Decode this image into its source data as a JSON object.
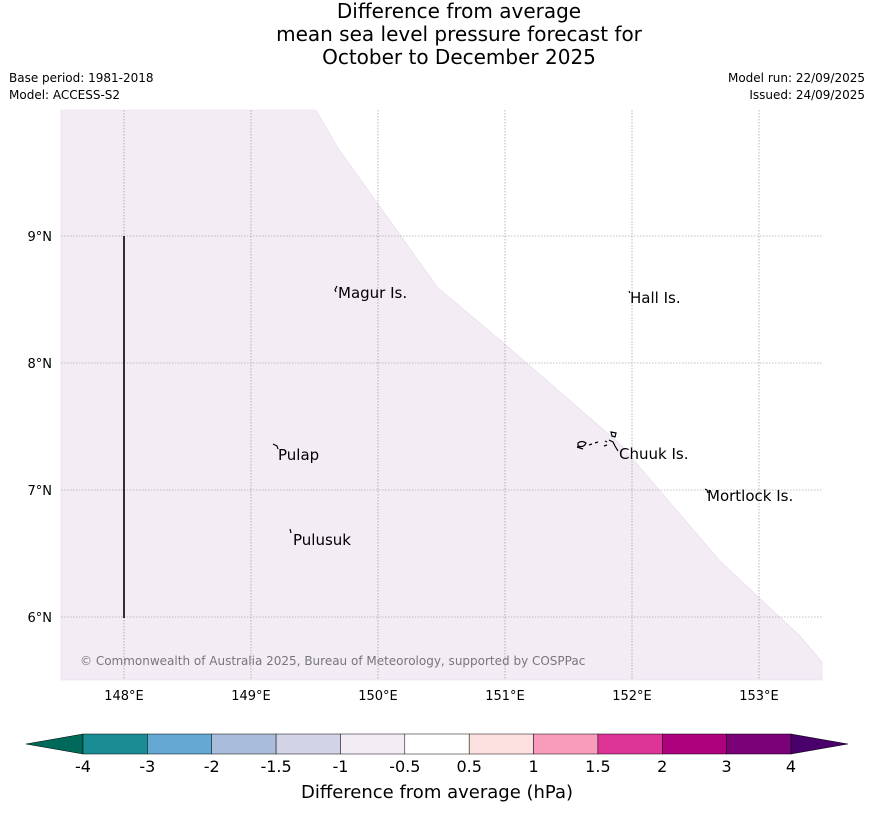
{
  "title": {
    "line1": "Difference from average",
    "line2": "mean sea level pressure forecast for",
    "line3": "October to December 2025"
  },
  "meta": {
    "base_period": "Base period: 1981-2018",
    "model": "Model: ACCESS-S2",
    "model_run": "Model run: 22/09/2025",
    "issued": "Issued: 24/09/2025"
  },
  "map": {
    "lat_labels": [
      "9°N",
      "8°N",
      "7°N",
      "6°N"
    ],
    "lon_labels": [
      "148°E",
      "149°E",
      "150°E",
      "151°E",
      "152°E",
      "153°E"
    ],
    "places": [
      "Magur Is.",
      "Hall Is.",
      "Pulap",
      "Chuuk Is.",
      "Mortlock Is.",
      "Pulusuk"
    ],
    "credit": "© Commonwealth of Australia 2025, Bureau of Meteorology, supported by COSPPac",
    "shaded_anomaly_band": "-1 to -0.5 hPa"
  },
  "colorbar": {
    "label": "Difference from average (hPa)",
    "ticks": [
      "-4",
      "-3",
      "-2",
      "-1.5",
      "-1",
      "-0.5",
      "0.5",
      "1",
      "1.5",
      "2",
      "3",
      "4"
    ],
    "colors": [
      "#1a8c94",
      "#66a8d4",
      "#a9bcdc",
      "#d3d3e8",
      "#f3ecf5",
      "#ffffff",
      "#fde0e0",
      "#f99cbc",
      "#dd3497",
      "#ae017e",
      "#7a0177"
    ],
    "under_color": "#00695a",
    "over_color": "#49006a"
  },
  "colors": {
    "anomaly_fill": "#f3ecf5",
    "grid": "#888888"
  }
}
